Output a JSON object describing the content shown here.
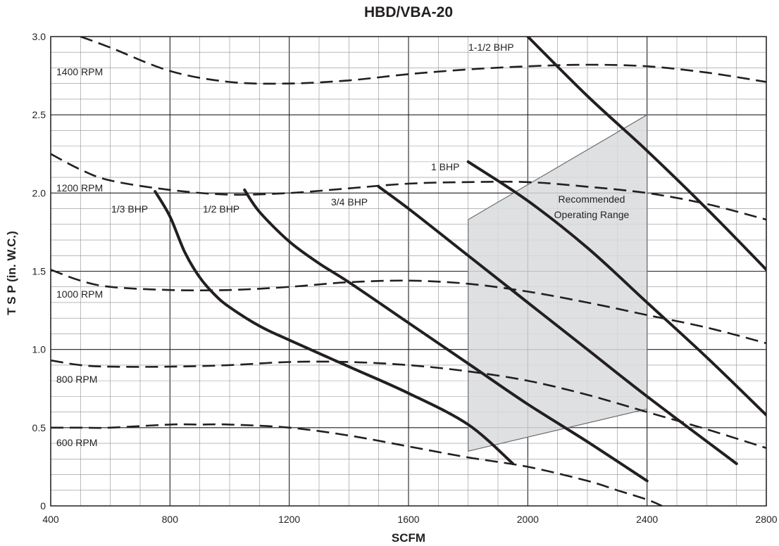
{
  "chart_data": {
    "type": "line",
    "title": "HBD/VBA-20",
    "xlabel": "SCFM",
    "ylabel": "T S P (in. W.C.)",
    "xlim": [
      400,
      2800
    ],
    "ylim": [
      0,
      3.0
    ],
    "x_ticks": [
      "400",
      "800",
      "1200",
      "1600",
      "2000",
      "2400",
      "2800"
    ],
    "y_ticks": [
      "0",
      "0.5",
      "1.0",
      "1.5",
      "2.0",
      "2.5",
      "3.0"
    ],
    "grid": true,
    "rpm_series": [
      {
        "name": "1400 RPM",
        "style": "dashed",
        "points": [
          [
            500,
            3.0
          ],
          [
            600,
            2.93
          ],
          [
            800,
            2.78
          ],
          [
            1000,
            2.71
          ],
          [
            1200,
            2.7
          ],
          [
            1400,
            2.72
          ],
          [
            1600,
            2.76
          ],
          [
            1800,
            2.79
          ],
          [
            2000,
            2.81
          ],
          [
            2200,
            2.82
          ],
          [
            2400,
            2.81
          ],
          [
            2600,
            2.77
          ],
          [
            2800,
            2.71
          ]
        ]
      },
      {
        "name": "1200 RPM",
        "style": "dashed",
        "points": [
          [
            400,
            2.25
          ],
          [
            500,
            2.15
          ],
          [
            600,
            2.08
          ],
          [
            800,
            2.02
          ],
          [
            1000,
            1.99
          ],
          [
            1200,
            2.0
          ],
          [
            1400,
            2.03
          ],
          [
            1600,
            2.06
          ],
          [
            1800,
            2.07
          ],
          [
            2000,
            2.07
          ],
          [
            2200,
            2.04
          ],
          [
            2400,
            2.0
          ],
          [
            2600,
            1.93
          ],
          [
            2800,
            1.83
          ]
        ]
      },
      {
        "name": "1000 RPM",
        "style": "dashed",
        "points": [
          [
            400,
            1.51
          ],
          [
            500,
            1.44
          ],
          [
            600,
            1.4
          ],
          [
            800,
            1.38
          ],
          [
            1000,
            1.38
          ],
          [
            1200,
            1.4
          ],
          [
            1400,
            1.43
          ],
          [
            1600,
            1.44
          ],
          [
            1800,
            1.42
          ],
          [
            2000,
            1.37
          ],
          [
            2200,
            1.3
          ],
          [
            2400,
            1.22
          ],
          [
            2600,
            1.14
          ],
          [
            2800,
            1.04
          ]
        ]
      },
      {
        "name": "800 RPM",
        "style": "dashed",
        "points": [
          [
            400,
            0.93
          ],
          [
            500,
            0.9
          ],
          [
            600,
            0.89
          ],
          [
            800,
            0.89
          ],
          [
            1000,
            0.9
          ],
          [
            1200,
            0.92
          ],
          [
            1400,
            0.92
          ],
          [
            1600,
            0.9
          ],
          [
            1800,
            0.86
          ],
          [
            2000,
            0.8
          ],
          [
            2200,
            0.71
          ],
          [
            2400,
            0.6
          ],
          [
            2600,
            0.49
          ],
          [
            2800,
            0.37
          ]
        ]
      },
      {
        "name": "600 RPM",
        "style": "dashed",
        "points": [
          [
            400,
            0.5
          ],
          [
            500,
            0.5
          ],
          [
            600,
            0.5
          ],
          [
            800,
            0.52
          ],
          [
            900,
            0.52
          ],
          [
            1000,
            0.52
          ],
          [
            1200,
            0.5
          ],
          [
            1400,
            0.45
          ],
          [
            1600,
            0.38
          ],
          [
            1800,
            0.31
          ],
          [
            2000,
            0.25
          ],
          [
            2200,
            0.16
          ],
          [
            2300,
            0.1
          ],
          [
            2400,
            0.04
          ],
          [
            2450,
            0.0
          ]
        ]
      }
    ],
    "bhp_series": [
      {
        "name": "1/3 BHP",
        "style": "solid",
        "points": [
          [
            750,
            2.01
          ],
          [
            800,
            1.85
          ],
          [
            850,
            1.62
          ],
          [
            900,
            1.46
          ],
          [
            950,
            1.35
          ],
          [
            1000,
            1.27
          ],
          [
            1100,
            1.15
          ],
          [
            1200,
            1.06
          ],
          [
            1400,
            0.89
          ],
          [
            1600,
            0.72
          ],
          [
            1800,
            0.52
          ],
          [
            1950,
            0.27
          ]
        ]
      },
      {
        "name": "1/2 BHP",
        "style": "solid",
        "points": [
          [
            1050,
            2.02
          ],
          [
            1100,
            1.88
          ],
          [
            1200,
            1.69
          ],
          [
            1300,
            1.55
          ],
          [
            1400,
            1.43
          ],
          [
            1600,
            1.17
          ],
          [
            1800,
            0.91
          ],
          [
            2000,
            0.65
          ],
          [
            2200,
            0.41
          ],
          [
            2400,
            0.16
          ]
        ]
      },
      {
        "name": "3/4 BHP",
        "style": "solid",
        "points": [
          [
            1500,
            2.04
          ],
          [
            1600,
            1.9
          ],
          [
            1800,
            1.6
          ],
          [
            2000,
            1.3
          ],
          [
            2200,
            1.0
          ],
          [
            2400,
            0.7
          ],
          [
            2700,
            0.27
          ]
        ]
      },
      {
        "name": "1 BHP",
        "style": "solid",
        "points": [
          [
            1800,
            2.2
          ],
          [
            2000,
            1.95
          ],
          [
            2200,
            1.65
          ],
          [
            2400,
            1.3
          ],
          [
            2600,
            0.95
          ],
          [
            2800,
            0.58
          ]
        ]
      },
      {
        "name": "1-1/2 BHP",
        "style": "solid",
        "points": [
          [
            2000,
            3.0
          ],
          [
            2200,
            2.62
          ],
          [
            2400,
            2.27
          ],
          [
            2600,
            1.9
          ],
          [
            2800,
            1.51
          ]
        ]
      }
    ],
    "region": {
      "label_line1": "Recommended",
      "label_line2": "Operating Range",
      "polygon": [
        [
          1800,
          1.83
        ],
        [
          2400,
          2.5
        ],
        [
          2400,
          0.62
        ],
        [
          1800,
          0.35
        ]
      ]
    },
    "annotations": {
      "rpm_1400": "1400 RPM",
      "rpm_1200": "1200 RPM",
      "rpm_1000": "1000 RPM",
      "rpm_800": "800 RPM",
      "rpm_600": "600 RPM",
      "bhp_1_3": "1/3 BHP",
      "bhp_1_2": "1/2 BHP",
      "bhp_3_4": "3/4 BHP",
      "bhp_1": "1 BHP",
      "bhp_1_5": "1-1/2 BHP"
    }
  }
}
